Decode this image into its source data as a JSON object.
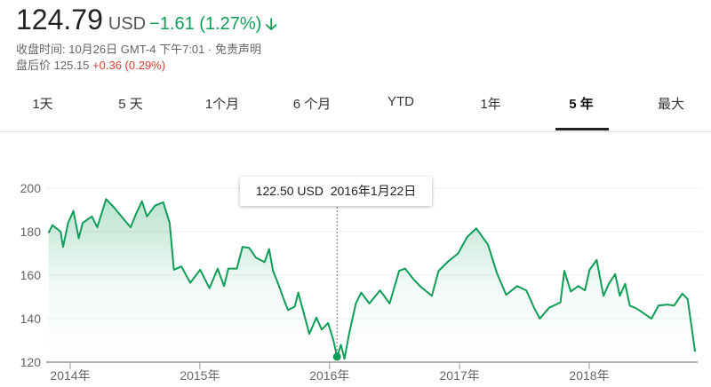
{
  "quote": {
    "price": "124.79",
    "currency": "USD",
    "change": "−1.61 (1.27%)",
    "direction_icon": "arrow-down-icon",
    "close_time": "收盘时间: 10月26日 GMT-4 下午7:01 · 免责声明",
    "after_hours_label": "盘后价",
    "after_hours_price": "125.15",
    "after_hours_change": "+0.36 (0.29%)",
    "colors": {
      "down": "#0f9d58",
      "up": "#d23f31"
    }
  },
  "tabs": [
    {
      "label": "1天"
    },
    {
      "label": "5 天"
    },
    {
      "label": "1个月"
    },
    {
      "label": "6 个月"
    },
    {
      "label": "YTD"
    },
    {
      "label": "1年"
    },
    {
      "label": "5 年",
      "active": true
    },
    {
      "label": "最大"
    }
  ],
  "tooltip": {
    "value": "122.50 USD",
    "date": "2016年1月22日",
    "x": "2016-01-22",
    "y": 122.5
  },
  "chart_data": {
    "type": "area",
    "title": "",
    "xlabel": "",
    "ylabel": "",
    "ylim": [
      120,
      200
    ],
    "xlim": [
      "2013-10-28",
      "2018-10-26"
    ],
    "yticks": [
      "120",
      "140",
      "160",
      "180",
      "200"
    ],
    "xticks": [
      {
        "date": "2014-01-01",
        "label": "2014年"
      },
      {
        "date": "2015-01-01",
        "label": "2015年"
      },
      {
        "date": "2016-01-01",
        "label": "2016年"
      },
      {
        "date": "2017-01-01",
        "label": "2017年"
      },
      {
        "date": "2018-01-01",
        "label": "2018年"
      }
    ],
    "grid": true,
    "color": "#0f9d58",
    "points": [
      [
        "2013-11-01",
        179.4
      ],
      [
        "2013-11-12",
        183
      ],
      [
        "2013-12-05",
        180
      ],
      [
        "2013-12-12",
        173
      ],
      [
        "2013-12-26",
        184
      ],
      [
        "2014-01-10",
        189.5
      ],
      [
        "2014-01-25",
        177
      ],
      [
        "2014-02-05",
        184
      ],
      [
        "2014-03-03",
        187
      ],
      [
        "2014-03-18",
        182
      ],
      [
        "2014-04-12",
        195
      ],
      [
        "2014-05-05",
        191
      ],
      [
        "2014-05-30",
        186
      ],
      [
        "2014-06-20",
        182
      ],
      [
        "2014-07-05",
        188
      ],
      [
        "2014-07-22",
        194
      ],
      [
        "2014-08-05",
        187
      ],
      [
        "2014-08-28",
        192
      ],
      [
        "2014-09-20",
        193.5
      ],
      [
        "2014-10-08",
        184
      ],
      [
        "2014-10-20",
        162.5
      ],
      [
        "2014-11-10",
        164
      ],
      [
        "2014-12-05",
        156.5
      ],
      [
        "2015-01-02",
        162.5
      ],
      [
        "2015-01-28",
        154
      ],
      [
        "2015-02-20",
        163
      ],
      [
        "2015-03-10",
        155
      ],
      [
        "2015-03-22",
        163
      ],
      [
        "2015-04-15",
        163
      ],
      [
        "2015-05-01",
        173
      ],
      [
        "2015-05-20",
        172.5
      ],
      [
        "2015-06-08",
        168
      ],
      [
        "2015-07-02",
        166
      ],
      [
        "2015-07-15",
        172
      ],
      [
        "2015-07-26",
        162
      ],
      [
        "2015-08-12",
        155
      ],
      [
        "2015-08-25",
        149
      ],
      [
        "2015-09-06",
        144
      ],
      [
        "2015-09-25",
        145.5
      ],
      [
        "2015-10-05",
        152
      ],
      [
        "2015-11-05",
        133
      ],
      [
        "2015-11-25",
        140.5
      ],
      [
        "2015-12-10",
        135
      ],
      [
        "2015-12-28",
        138
      ],
      [
        "2016-01-12",
        130
      ],
      [
        "2016-01-22",
        122.5
      ],
      [
        "2016-02-02",
        128
      ],
      [
        "2016-02-12",
        121.5
      ],
      [
        "2016-02-25",
        133
      ],
      [
        "2016-03-15",
        147
      ],
      [
        "2016-03-30",
        152
      ],
      [
        "2016-04-22",
        147
      ],
      [
        "2016-05-22",
        153
      ],
      [
        "2016-06-18",
        147
      ],
      [
        "2016-07-15",
        162
      ],
      [
        "2016-08-01",
        163
      ],
      [
        "2016-08-25",
        158
      ],
      [
        "2016-09-15",
        154.5
      ],
      [
        "2016-10-15",
        150.5
      ],
      [
        "2016-11-03",
        162
      ],
      [
        "2016-12-01",
        166.5
      ],
      [
        "2016-12-28",
        170
      ],
      [
        "2017-01-22",
        177.5
      ],
      [
        "2017-02-17",
        181.5
      ],
      [
        "2017-03-22",
        174
      ],
      [
        "2017-04-16",
        161
      ],
      [
        "2017-05-12",
        151
      ],
      [
        "2017-06-12",
        155
      ],
      [
        "2017-07-08",
        153
      ],
      [
        "2017-07-30",
        145
      ],
      [
        "2017-08-15",
        140
      ],
      [
        "2017-09-10",
        145
      ],
      [
        "2017-10-12",
        147.5
      ],
      [
        "2017-10-23",
        162
      ],
      [
        "2017-11-10",
        152.5
      ],
      [
        "2017-12-01",
        155
      ],
      [
        "2017-12-20",
        153
      ],
      [
        "2018-01-02",
        162.5
      ],
      [
        "2018-01-22",
        167
      ],
      [
        "2018-02-10",
        150.5
      ],
      [
        "2018-02-25",
        156
      ],
      [
        "2018-03-15",
        160.5
      ],
      [
        "2018-03-28",
        150.5
      ],
      [
        "2018-04-12",
        156
      ],
      [
        "2018-04-25",
        146
      ],
      [
        "2018-05-10",
        145
      ],
      [
        "2018-05-25",
        143.5
      ],
      [
        "2018-06-25",
        140
      ],
      [
        "2018-07-15",
        146
      ],
      [
        "2018-08-08",
        146.5
      ],
      [
        "2018-08-28",
        146
      ],
      [
        "2018-09-20",
        151.5
      ],
      [
        "2018-10-05",
        149
      ],
      [
        "2018-10-26",
        124.8
      ]
    ]
  }
}
